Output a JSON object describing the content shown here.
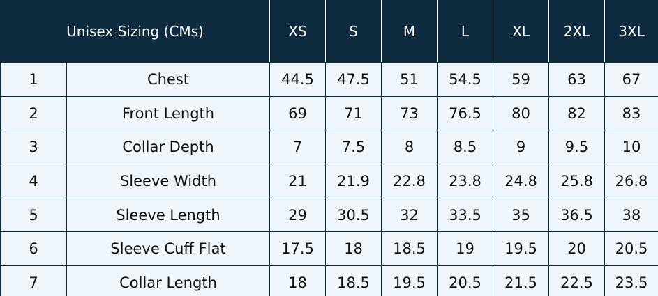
{
  "table": {
    "header": {
      "title": "Unisex Sizing (CMs)",
      "sizes": [
        "XS",
        "S",
        "M",
        "L",
        "XL",
        "2XL",
        "3XL"
      ]
    },
    "rows": [
      [
        1,
        "Chest",
        44.5,
        47.5,
        51,
        54.5,
        59,
        63,
        67
      ],
      [
        2,
        "Front Length",
        69,
        71,
        73,
        76.5,
        80,
        82,
        83
      ],
      [
        3,
        "Collar Depth",
        7,
        7.5,
        8,
        8.5,
        9,
        9.5,
        10
      ],
      [
        4,
        "Sleeve Width",
        21,
        21.9,
        22.8,
        23.8,
        24.8,
        25.8,
        26.8
      ],
      [
        5,
        "Sleeve Length",
        29,
        30.5,
        32,
        33.5,
        35,
        36.5,
        38
      ],
      [
        6,
        "Sleeve Cuff Flat",
        17.5,
        18,
        18.5,
        19,
        19.5,
        20,
        20.5
      ],
      [
        7,
        "Collar Length",
        18,
        18.5,
        19.5,
        20.5,
        21.5,
        22.5,
        23.5
      ]
    ]
  }
}
